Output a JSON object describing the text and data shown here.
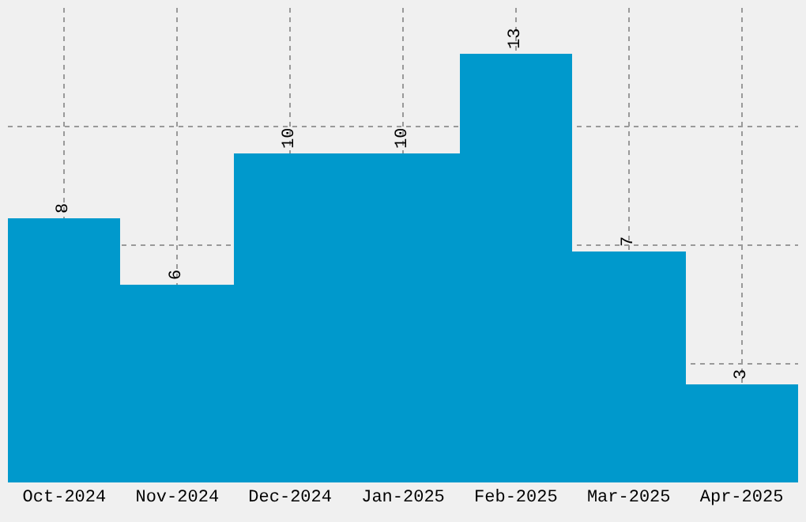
{
  "chart_data": {
    "type": "bar",
    "categories": [
      "Oct-2024",
      "Nov-2024",
      "Dec-2024",
      "Jan-2025",
      "Feb-2025",
      "Mar-2025",
      "Apr-2025"
    ],
    "values": [
      8,
      6,
      10,
      10,
      13,
      7,
      3
    ],
    "color": "#0099cc",
    "ylim": [
      0,
      14.4
    ],
    "yticks": [
      {
        "value": 3.6,
        "label": null
      },
      {
        "value": 7.2,
        "label": null
      },
      {
        "value": 10.8,
        "label": null
      }
    ],
    "grid": true,
    "data_labels": true,
    "tick_labels": "x"
  }
}
